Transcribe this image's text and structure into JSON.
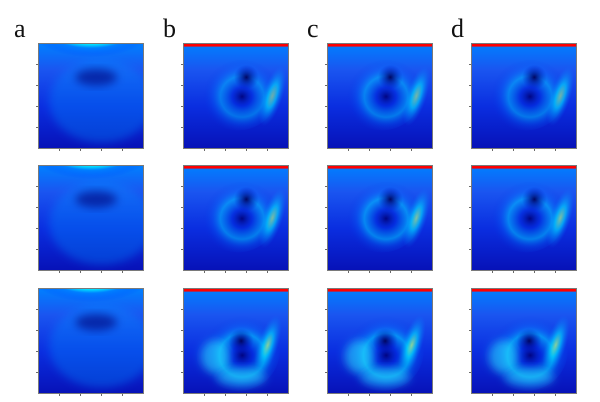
{
  "figure": {
    "column_labels": [
      "a",
      "b",
      "c",
      "d"
    ],
    "colormap": [
      "#00007f",
      "#0000ff",
      "#007fff",
      "#00ffff",
      "#7fff7f",
      "#ffff00",
      "#ff7f00",
      "#ff0000",
      "#7f0000"
    ],
    "background": "#ffffff",
    "columns": [
      {
        "label": "a",
        "rows": [
          {
            "variant": "shallow",
            "intensity": 0.55
          },
          {
            "variant": "shallow",
            "intensity": 0.58
          },
          {
            "variant": "shallow",
            "intensity": 0.6
          }
        ]
      },
      {
        "label": "b",
        "rows": [
          {
            "variant": "vortex",
            "intensity": 0.55
          },
          {
            "variant": "vortex",
            "intensity": 0.62
          },
          {
            "variant": "vortex-low",
            "intensity": 0.7
          }
        ]
      },
      {
        "label": "c",
        "rows": [
          {
            "variant": "vortex",
            "intensity": 0.6
          },
          {
            "variant": "vortex",
            "intensity": 0.66
          },
          {
            "variant": "vortex-low",
            "intensity": 0.72
          }
        ]
      },
      {
        "label": "d",
        "rows": [
          {
            "variant": "vortex",
            "intensity": 0.58
          },
          {
            "variant": "vortex",
            "intensity": 0.64
          },
          {
            "variant": "vortex-low",
            "intensity": 0.7
          }
        ]
      }
    ]
  }
}
